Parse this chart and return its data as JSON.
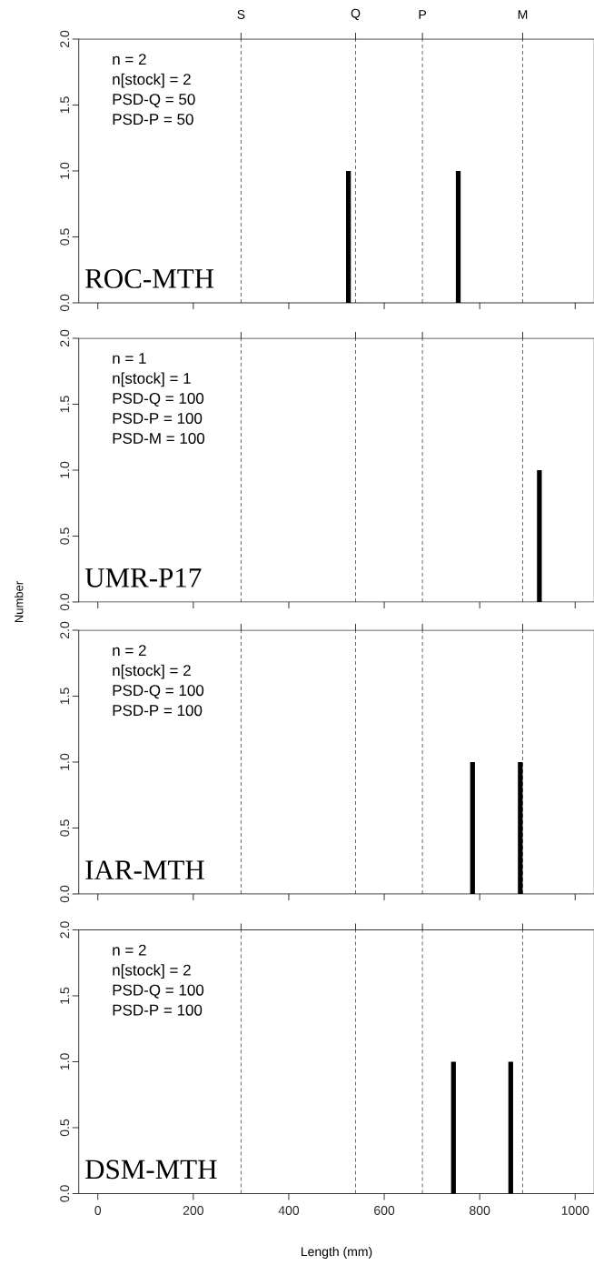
{
  "chart_data": [
    {
      "type": "bar",
      "title": "ROC-MTH",
      "annotations": [
        "n = 2",
        "n[stock] = 2",
        "PSD-Q = 50",
        "PSD-P = 50"
      ],
      "x": [
        525,
        755
      ],
      "values": [
        1,
        1
      ],
      "color": "#000000",
      "xlim": [
        -40,
        1040
      ],
      "ylim": [
        0,
        2
      ],
      "xticks": [
        0,
        200,
        400,
        600,
        800,
        1000
      ],
      "yticks": [
        {
          "value": 0,
          "label": "0.0"
        },
        {
          "value": 0.5,
          "label": "0.5"
        },
        {
          "value": 1,
          "label": "1.0"
        },
        {
          "value": 1.5,
          "label": "1.5"
        },
        {
          "value": 2,
          "label": "2.0"
        }
      ],
      "tick_labels": "y",
      "ref_lines": [
        {
          "axis": "x",
          "value": 300,
          "label": "S",
          "color": "#000000",
          "line_style": "dashed"
        },
        {
          "axis": "x",
          "value": 540,
          "label": "Q",
          "color": "#000000",
          "line_style": "dashed"
        },
        {
          "axis": "x",
          "value": 680,
          "label": "P",
          "color": "#000000",
          "line_style": "dashed"
        },
        {
          "axis": "x",
          "value": 890,
          "label": "M",
          "color": "#000000",
          "line_style": "dashed"
        }
      ]
    },
    {
      "type": "bar",
      "title": "UMR-P17",
      "ylabel": "Number",
      "annotations": [
        "n = 1",
        "n[stock] = 1",
        "PSD-Q = 100",
        "PSD-P = 100",
        "PSD-M = 100"
      ],
      "x": [
        925
      ],
      "values": [
        1
      ],
      "color": "#000000",
      "xlim": [
        -40,
        1040
      ],
      "ylim": [
        0,
        2
      ],
      "xticks": [
        0,
        200,
        400,
        600,
        800,
        1000
      ],
      "yticks": [
        {
          "value": 0,
          "label": "0.0"
        },
        {
          "value": 0.5,
          "label": "0.5"
        },
        {
          "value": 1,
          "label": "1.0"
        },
        {
          "value": 1.5,
          "label": "1.5"
        },
        {
          "value": 2,
          "label": "2.0"
        }
      ],
      "tick_labels": "y",
      "ref_lines": [
        {
          "axis": "x",
          "value": 300,
          "color": "#000000",
          "line_style": "dashed"
        },
        {
          "axis": "x",
          "value": 540,
          "color": "#000000",
          "line_style": "dashed"
        },
        {
          "axis": "x",
          "value": 680,
          "color": "#000000",
          "line_style": "dashed"
        },
        {
          "axis": "x",
          "value": 890,
          "color": "#000000",
          "line_style": "dashed"
        }
      ]
    },
    {
      "type": "bar",
      "title": "IAR-MTH",
      "annotations": [
        "n = 2",
        "n[stock] = 2",
        "PSD-Q = 100",
        "PSD-P = 100"
      ],
      "x": [
        785,
        885
      ],
      "values": [
        1,
        1
      ],
      "color": "#000000",
      "xlim": [
        -40,
        1040
      ],
      "ylim": [
        0,
        2
      ],
      "xticks": [
        0,
        200,
        400,
        600,
        800,
        1000
      ],
      "yticks": [
        {
          "value": 0,
          "label": "0.0"
        },
        {
          "value": 0.5,
          "label": "0.5"
        },
        {
          "value": 1,
          "label": "1.0"
        },
        {
          "value": 1.5,
          "label": "1.5"
        },
        {
          "value": 2,
          "label": "2.0"
        }
      ],
      "tick_labels": "y",
      "ref_lines": [
        {
          "axis": "x",
          "value": 300,
          "color": "#000000",
          "line_style": "dashed"
        },
        {
          "axis": "x",
          "value": 540,
          "color": "#000000",
          "line_style": "dashed"
        },
        {
          "axis": "x",
          "value": 680,
          "color": "#000000",
          "line_style": "dashed"
        },
        {
          "axis": "x",
          "value": 890,
          "color": "#000000",
          "line_style": "dashed"
        }
      ]
    },
    {
      "type": "bar",
      "title": "DSM-MTH",
      "xlabel": "Length (mm)",
      "annotations": [
        "n = 2",
        "n[stock] = 2",
        "PSD-Q = 100",
        "PSD-P = 100"
      ],
      "x": [
        745,
        865
      ],
      "values": [
        1,
        1
      ],
      "color": "#000000",
      "xlim": [
        -40,
        1040
      ],
      "ylim": [
        0,
        2
      ],
      "xticks": [
        0,
        200,
        400,
        600,
        800,
        1000
      ],
      "yticks": [
        {
          "value": 0,
          "label": "0.0"
        },
        {
          "value": 0.5,
          "label": "0.5"
        },
        {
          "value": 1,
          "label": "1.0"
        },
        {
          "value": 1.5,
          "label": "1.5"
        },
        {
          "value": 2,
          "label": "2.0"
        }
      ],
      "ref_lines": [
        {
          "axis": "x",
          "value": 300,
          "color": "#000000",
          "line_style": "dashed"
        },
        {
          "axis": "x",
          "value": 540,
          "color": "#000000",
          "line_style": "dashed"
        },
        {
          "axis": "x",
          "value": 680,
          "color": "#000000",
          "line_style": "dashed"
        },
        {
          "axis": "x",
          "value": 890,
          "color": "#000000",
          "line_style": "dashed"
        }
      ]
    }
  ]
}
